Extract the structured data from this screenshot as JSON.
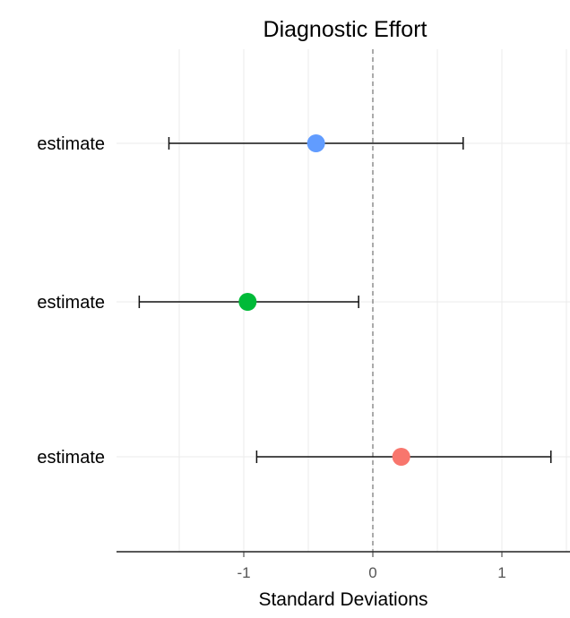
{
  "chart_data": {
    "type": "scatter",
    "title": "Diagnostic Effort",
    "xlabel": "Standard Deviations",
    "ylabel": "",
    "xlim": [
      -1.97,
      1.52
    ],
    "xticks": [
      -1,
      0,
      1
    ],
    "xtick_labels": [
      "-1",
      "0",
      "1"
    ],
    "grid": true,
    "reference_line": {
      "x": 0,
      "style": "dashed"
    },
    "series": [
      {
        "label": "estimate",
        "estimate": -0.44,
        "lower": -1.58,
        "upper": 0.7,
        "color": "#619CFF"
      },
      {
        "label": "estimate",
        "estimate": -0.97,
        "lower": -1.81,
        "upper": -0.11,
        "color": "#00BA38"
      },
      {
        "label": "estimate",
        "estimate": 0.22,
        "lower": -0.9,
        "upper": 1.38,
        "color": "#F8766D"
      }
    ]
  }
}
